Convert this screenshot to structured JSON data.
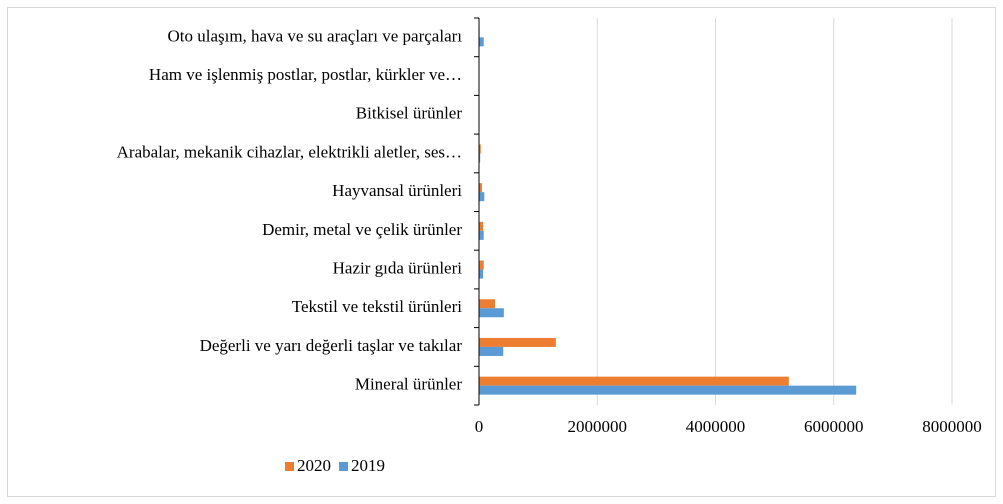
{
  "chart_data": {
    "type": "barh",
    "categories": [
      "Oto ulaşım, hava ve su araçları ve parçaları",
      "Ham ve işlenmiş postlar, postlar, kürkler ve…",
      "Bitkisel ürünler",
      "Arabalar, mekanik cihazlar, elektrikli aletler, ses…",
      "Hayvansal ürünleri",
      "Demir, metal ve çelik ürünler",
      "Hazir gıda ürünleri",
      "Tekstil ve tekstil ürünleri",
      "Değerli ve yarı değerli taşlar ve takılar",
      "Mineral ürünler"
    ],
    "series": [
      {
        "name": "2020",
        "color": "#ed7d31",
        "values": [
          10000,
          5000,
          5000,
          30000,
          50000,
          70000,
          80000,
          270000,
          1300000,
          5240000
        ]
      },
      {
        "name": "2019",
        "color": "#5b9bd5",
        "values": [
          80000,
          5000,
          5000,
          20000,
          90000,
          80000,
          70000,
          420000,
          410000,
          6380000
        ]
      }
    ],
    "xlim": [
      0,
      8000000
    ],
    "xticks": [
      0,
      2000000,
      4000000,
      6000000,
      8000000
    ],
    "grid": true,
    "legend": "bottom-left"
  }
}
